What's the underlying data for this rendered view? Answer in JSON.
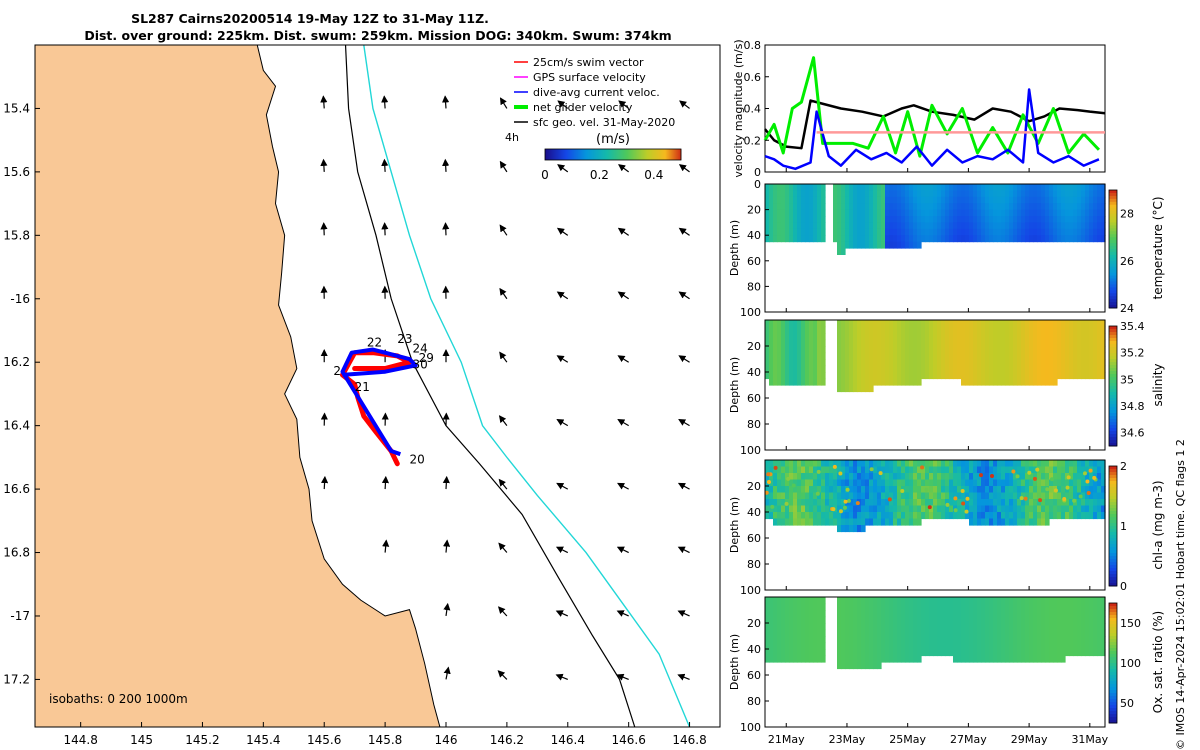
{
  "header": {
    "title_line1": "SL287 Cairns20200514 19-May 12Z to 31-May 11Z.",
    "title_line2": "Dist. over ground: 225km. Dist. swum: 259km. Mission DOG: 340km. Swum: 374km"
  },
  "footer": {
    "credit": "© IMOS 14-Apr-2024 15:02:01 Hobart time. QC flags 1  2"
  },
  "colors": {
    "land": "#f9c896",
    "ocean": "#ffffff",
    "isobath_200": "#000000",
    "isobath_1000": "#22d7d7",
    "swim_vector": "#ff0000",
    "gps_velocity": "#ff00ff",
    "dive_avg_current": "#0000ff",
    "net_glider_velocity": "#00ee00",
    "sfc_geo_vel": "#000000"
  },
  "chart_data": [
    {
      "id": "map",
      "type": "scatter",
      "title": "glider track and velocity vectors",
      "xlim": [
        144.65,
        146.9
      ],
      "ylim": [
        -17.35,
        -15.2
      ],
      "xticks": [
        {
          "v": 144.8,
          "label": "144.8"
        },
        {
          "v": 145,
          "label": "145"
        },
        {
          "v": 145.2,
          "label": "145.2"
        },
        {
          "v": 145.4,
          "label": "145.4"
        },
        {
          "v": 145.6,
          "label": "145.6"
        },
        {
          "v": 145.8,
          "label": "145.8"
        },
        {
          "v": 146,
          "label": "146"
        },
        {
          "v": 146.2,
          "label": "146.2"
        },
        {
          "v": 146.4,
          "label": "146.4"
        },
        {
          "v": 146.6,
          "label": "146.6"
        },
        {
          "v": 146.8,
          "label": "146.8"
        }
      ],
      "yticks": [
        {
          "v": -15.4,
          "label": "15.4"
        },
        {
          "v": -15.6,
          "label": "15.6"
        },
        {
          "v": -15.8,
          "label": "15.8"
        },
        {
          "v": -16,
          "label": "-16"
        },
        {
          "v": -16.2,
          "label": "16.2"
        },
        {
          "v": -16.4,
          "label": "16.4"
        },
        {
          "v": -16.6,
          "label": "16.6"
        },
        {
          "v": -16.8,
          "label": "16.8"
        },
        {
          "v": -17,
          "label": "-17"
        },
        {
          "v": -17.2,
          "label": "17.2"
        }
      ],
      "legend": [
        {
          "label": "25cm/s swim vector",
          "color": "#ff0000"
        },
        {
          "label": "GPS surface velocity",
          "color": "#ff00ff"
        },
        {
          "label": "dive-avg current veloc.",
          "color": "#0000ff"
        },
        {
          "label": "net glider velocity",
          "color": "#00ee00"
        },
        {
          "label": "sfc geo. vel. 31-May-2020",
          "color": "#000000"
        }
      ],
      "legend_extra": "4h",
      "colorbar": {
        "label": "(m/s)",
        "ticks": [
          "0",
          "0.2",
          "0.4"
        ],
        "range": [
          0,
          0.5
        ]
      },
      "isobath_label": "isobaths: 0   200  1000m",
      "coastline": [
        [
          144.65,
          -15.2
        ],
        [
          145.38,
          -15.2
        ],
        [
          145.4,
          -15.28
        ],
        [
          145.44,
          -15.33
        ],
        [
          145.41,
          -15.42
        ],
        [
          145.43,
          -15.52
        ],
        [
          145.45,
          -15.6
        ],
        [
          145.44,
          -15.7
        ],
        [
          145.47,
          -15.8
        ],
        [
          145.46,
          -15.92
        ],
        [
          145.45,
          -16.02
        ],
        [
          145.49,
          -16.12
        ],
        [
          145.51,
          -16.22
        ],
        [
          145.47,
          -16.3
        ],
        [
          145.51,
          -16.38
        ],
        [
          145.52,
          -16.5
        ],
        [
          145.55,
          -16.6
        ],
        [
          145.56,
          -16.7
        ],
        [
          145.6,
          -16.82
        ],
        [
          145.66,
          -16.9
        ],
        [
          145.72,
          -16.95
        ],
        [
          145.8,
          -17.0
        ],
        [
          145.88,
          -16.98
        ],
        [
          145.9,
          -17.04
        ],
        [
          145.93,
          -17.15
        ],
        [
          145.96,
          -17.28
        ],
        [
          145.98,
          -17.35
        ],
        [
          144.65,
          -17.35
        ]
      ],
      "isobath_200m": [
        [
          145.67,
          -15.2
        ],
        [
          145.68,
          -15.4
        ],
        [
          145.71,
          -15.6
        ],
        [
          145.77,
          -15.8
        ],
        [
          145.82,
          -16.0
        ],
        [
          145.89,
          -16.2
        ],
        [
          146.0,
          -16.4
        ],
        [
          146.11,
          -16.52
        ],
        [
          146.25,
          -16.68
        ],
        [
          146.37,
          -16.88
        ],
        [
          146.48,
          -17.06
        ],
        [
          146.57,
          -17.2
        ],
        [
          146.62,
          -17.35
        ]
      ],
      "isobath_1000m": [
        [
          145.73,
          -15.2
        ],
        [
          145.76,
          -15.4
        ],
        [
          145.82,
          -15.6
        ],
        [
          145.88,
          -15.8
        ],
        [
          145.95,
          -16.0
        ],
        [
          146.05,
          -16.2
        ],
        [
          146.12,
          -16.4
        ],
        [
          146.2,
          -16.5
        ],
        [
          146.3,
          -16.62
        ],
        [
          146.46,
          -16.8
        ],
        [
          146.58,
          -16.96
        ],
        [
          146.7,
          -17.12
        ],
        [
          146.8,
          -17.35
        ]
      ],
      "track_red": [
        [
          145.84,
          -16.52
        ],
        [
          145.82,
          -16.48
        ],
        [
          145.77,
          -16.42
        ],
        [
          145.73,
          -16.37
        ],
        [
          145.71,
          -16.31
        ],
        [
          145.7,
          -16.27
        ],
        [
          145.66,
          -16.24
        ],
        [
          145.7,
          -16.17
        ],
        [
          145.76,
          -16.17
        ],
        [
          145.84,
          -16.18
        ],
        [
          145.88,
          -16.2
        ],
        [
          145.8,
          -16.22
        ],
        [
          145.7,
          -16.22
        ]
      ],
      "track_blue": [
        [
          145.85,
          -16.49
        ],
        [
          145.82,
          -16.48
        ],
        [
          145.66,
          -16.23
        ],
        [
          145.69,
          -16.17
        ],
        [
          145.76,
          -16.16
        ],
        [
          145.88,
          -16.19
        ],
        [
          145.9,
          -16.21
        ],
        [
          145.8,
          -16.23
        ],
        [
          145.66,
          -16.24
        ]
      ],
      "day_labels": [
        {
          "lon": 145.74,
          "lat": -16.15,
          "label": "22"
        },
        {
          "lon": 145.84,
          "lat": -16.14,
          "label": "23"
        },
        {
          "lon": 145.89,
          "lat": -16.17,
          "label": "24"
        },
        {
          "lon": 145.91,
          "lat": -16.2,
          "label": "29"
        },
        {
          "lon": 145.89,
          "lat": -16.22,
          "label": "30"
        },
        {
          "lon": 145.63,
          "lat": -16.24,
          "label": "2"
        },
        {
          "lon": 145.7,
          "lat": -16.29,
          "label": "21"
        },
        {
          "lon": 145.88,
          "lat": -16.52,
          "label": "20"
        }
      ],
      "geo_vectors": [
        {
          "lon": 145.7,
          "lat": -15.42,
          "u": 0,
          "v": 0.12
        },
        {
          "lon": 145.9,
          "lat": -15.42,
          "u": -0.1,
          "v": 0.1
        },
        {
          "lon": 145.5,
          "lat": -15.6,
          "u": 0,
          "v": 0.1
        },
        {
          "lon": 145.7,
          "lat": -15.6,
          "u": 0.02,
          "v": 0.12
        },
        {
          "lon": 146.2,
          "lat": -15.8,
          "u": -0.12,
          "v": 0.02
        },
        {
          "lon": 146.6,
          "lat": -16.0,
          "u": -0.08,
          "v": 0.02
        },
        {
          "lon": 146.4,
          "lat": -16.4,
          "u": -0.08,
          "v": 0.08
        },
        {
          "lon": 146.2,
          "lat": -16.8,
          "u": -0.1,
          "v": 0.12
        },
        {
          "lon": 146.4,
          "lat": -17.0,
          "u": -0.1,
          "v": 0.14
        },
        {
          "lon": 146.6,
          "lat": -17.2,
          "u": -0.1,
          "v": 0.12
        }
      ]
    },
    {
      "id": "velocity",
      "type": "line",
      "ylabel": "velocity magnitude (m/s)",
      "ylim": [
        0,
        0.8
      ],
      "yticks": [
        "0",
        "0.2",
        "0.4",
        "0.6",
        "0.8"
      ],
      "xlim": [
        20.3,
        31.5
      ],
      "series": [
        {
          "name": "sfc geo. vel.",
          "color": "#000000",
          "x": [
            20.3,
            20.6,
            21,
            21.5,
            21.8,
            22.2,
            22.8,
            23.5,
            24.2,
            24.8,
            25.2,
            25.8,
            26.5,
            27.2,
            27.8,
            28.4,
            29.0,
            29.5,
            30.0,
            30.6,
            31.0,
            31.5
          ],
          "values": [
            0.27,
            0.2,
            0.16,
            0.15,
            0.45,
            0.43,
            0.4,
            0.38,
            0.35,
            0.4,
            0.42,
            0.38,
            0.36,
            0.33,
            0.4,
            0.38,
            0.32,
            0.35,
            0.4,
            0.39,
            0.38,
            0.37
          ]
        },
        {
          "name": "net glider velocity",
          "color": "#00ee00",
          "x": [
            20.3,
            20.6,
            20.9,
            21.2,
            21.5,
            21.9,
            22.2,
            22.7,
            23.2,
            23.7,
            24.2,
            24.6,
            25.0,
            25.4,
            25.8,
            26.3,
            26.8,
            27.3,
            27.8,
            28.3,
            28.8,
            29.3,
            29.8,
            30.3,
            30.8,
            31.3
          ],
          "values": [
            0.2,
            0.3,
            0.12,
            0.4,
            0.44,
            0.72,
            0.18,
            0.18,
            0.18,
            0.15,
            0.35,
            0.12,
            0.38,
            0.1,
            0.42,
            0.24,
            0.4,
            0.12,
            0.28,
            0.12,
            0.36,
            0.18,
            0.4,
            0.12,
            0.24,
            0.14
          ]
        },
        {
          "name": "dive-avg current veloc.",
          "color": "#0000ff",
          "x": [
            20.3,
            20.6,
            20.9,
            21.3,
            21.8,
            22.0,
            22.4,
            22.8,
            23.3,
            23.8,
            24.3,
            24.8,
            25.3,
            25.8,
            26.3,
            26.8,
            27.3,
            27.8,
            28.3,
            28.8,
            29.0,
            29.3,
            29.8,
            30.3,
            30.8,
            31.3
          ],
          "values": [
            0.1,
            0.08,
            0.04,
            0.02,
            0.06,
            0.38,
            0.1,
            0.04,
            0.14,
            0.08,
            0.12,
            0.06,
            0.16,
            0.04,
            0.14,
            0.06,
            0.1,
            0.08,
            0.14,
            0.06,
            0.52,
            0.12,
            0.06,
            0.1,
            0.04,
            0.08
          ]
        },
        {
          "name": "swim speed",
          "color": "#ff9999",
          "x": [
            22.0,
            31.5
          ],
          "values": [
            0.25,
            0.25
          ]
        }
      ]
    },
    {
      "id": "temperature",
      "type": "heatmap",
      "ylabel": "Depth (m)",
      "colorbar_label": "temperature (°C)",
      "colorbar_ticks": [
        "24",
        "26",
        "28"
      ],
      "clim": [
        24,
        29
      ],
      "yticks": [
        "0",
        "20",
        "40",
        "60",
        "80",
        "100"
      ]
    },
    {
      "id": "salinity",
      "type": "heatmap",
      "ylabel": "Depth (m)",
      "colorbar_label": "salinity",
      "colorbar_ticks": [
        "34.6",
        "34.8",
        "35",
        "35.2",
        "35.4"
      ],
      "clim": [
        34.5,
        35.4
      ],
      "yticks": [
        "",
        "20",
        "40",
        "60",
        "80",
        "100"
      ]
    },
    {
      "id": "chla",
      "type": "heatmap",
      "ylabel": "Depth (m)",
      "colorbar_label": "chl-a (mg m-3)",
      "colorbar_ticks": [
        "0",
        "1",
        "2"
      ],
      "clim": [
        0,
        2
      ],
      "yticks": [
        "",
        "20",
        "40",
        "60",
        "80",
        "100"
      ]
    },
    {
      "id": "oxygen",
      "type": "heatmap",
      "ylabel": "Depth (m)",
      "colorbar_label": "Ox. sat. ratio (%)",
      "colorbar_ticks": [
        "50",
        "100",
        "150"
      ],
      "clim": [
        25,
        175
      ],
      "yticks": [
        "",
        "20",
        "40",
        "60",
        "80",
        "100"
      ]
    }
  ],
  "time_axis": {
    "xlim": [
      20.3,
      31.5
    ],
    "ticks": [
      {
        "v": 21,
        "label": "21May"
      },
      {
        "v": 23,
        "label": "23May"
      },
      {
        "v": 25,
        "label": "25May"
      },
      {
        "v": 27,
        "label": "27May"
      },
      {
        "v": 29,
        "label": "29May"
      },
      {
        "v": 31,
        "label": "31May"
      }
    ]
  }
}
